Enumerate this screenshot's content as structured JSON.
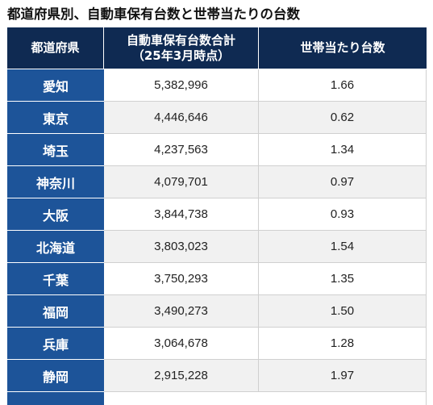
{
  "title": "都道府県別、自動車保有台数と世帯当たりの台数",
  "table": {
    "headers": {
      "prefecture": "都道府県",
      "total_line1": "自動車保有台数合計",
      "total_line2": "（25年3月時点）",
      "per_household": "世帯当たり台数"
    },
    "rows": [
      {
        "prefecture": "愛知",
        "total": "5,382,996",
        "per_household": "1.66"
      },
      {
        "prefecture": "東京",
        "total": "4,446,646",
        "per_household": "0.62"
      },
      {
        "prefecture": "埼玉",
        "total": "4,237,563",
        "per_household": "1.34"
      },
      {
        "prefecture": "神奈川",
        "total": "4,079,701",
        "per_household": "0.97"
      },
      {
        "prefecture": "大阪",
        "total": "3,844,738",
        "per_household": "0.93"
      },
      {
        "prefecture": "北海道",
        "total": "3,803,023",
        "per_household": "1.54"
      },
      {
        "prefecture": "千葉",
        "total": "3,750,293",
        "per_household": "1.35"
      },
      {
        "prefecture": "福岡",
        "total": "3,490,273",
        "per_household": "1.50"
      },
      {
        "prefecture": "兵庫",
        "total": "3,064,678",
        "per_household": "1.28"
      },
      {
        "prefecture": "静岡",
        "total": "2,915,228",
        "per_household": "1.97"
      }
    ]
  },
  "colors": {
    "header_bg": "#0f2a52",
    "prefecture_bg": "#1d5499",
    "alt_row_bg": "#f1f1f1"
  }
}
